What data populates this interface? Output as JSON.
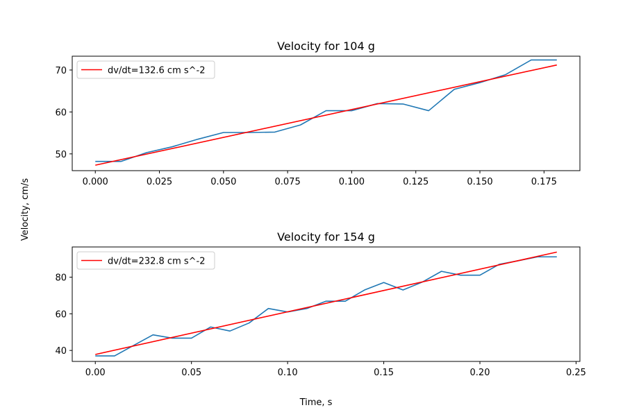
{
  "figure": {
    "xlabel": "Time, s",
    "ylabel": "Velocity, cm/s"
  },
  "chart_data": [
    {
      "type": "line",
      "title": "Velocity for 104 g",
      "xlim": [
        -0.009,
        0.189
      ],
      "ylim": [
        46,
        73.3
      ],
      "xticks": [
        0.0,
        0.025,
        0.05,
        0.075,
        0.1,
        0.125,
        0.15,
        0.175
      ],
      "xtick_labels": [
        "0.000",
        "0.025",
        "0.050",
        "0.075",
        "0.100",
        "0.125",
        "0.150",
        "0.175"
      ],
      "yticks": [
        50,
        60,
        70
      ],
      "ytick_labels": [
        "50",
        "60",
        "70"
      ],
      "legend_position": "upper-left",
      "series": [
        {
          "kind": "measured",
          "color": "#1f77b4",
          "x": [
            0.0,
            0.01,
            0.02,
            0.03,
            0.04,
            0.05,
            0.06,
            0.07,
            0.08,
            0.09,
            0.1,
            0.11,
            0.12,
            0.13,
            0.14,
            0.15,
            0.16,
            0.17,
            0.18
          ],
          "y": [
            48.2,
            48.2,
            50.3,
            51.7,
            53.5,
            55.1,
            55.1,
            55.2,
            56.9,
            60.3,
            60.3,
            62.0,
            61.9,
            60.3,
            65.4,
            67.0,
            68.9,
            72.4,
            72.4
          ]
        },
        {
          "kind": "fit",
          "name": "dv/dt=132.6 cm s^-2",
          "color": "#ff0000",
          "x": [
            0.0,
            0.18
          ],
          "y": [
            47.3,
            71.2
          ]
        }
      ]
    },
    {
      "type": "line",
      "title": "Velocity for 154 g",
      "xlim": [
        -0.012,
        0.252
      ],
      "ylim": [
        34,
        96.5
      ],
      "xticks": [
        0.0,
        0.05,
        0.1,
        0.15,
        0.2,
        0.25
      ],
      "xtick_labels": [
        "0.00",
        "0.05",
        "0.10",
        "0.15",
        "0.20",
        "0.25"
      ],
      "yticks": [
        40,
        60,
        80
      ],
      "ytick_labels": [
        "40",
        "60",
        "80"
      ],
      "legend_position": "upper-left",
      "series": [
        {
          "kind": "measured",
          "color": "#1f77b4",
          "x": [
            0.0,
            0.01,
            0.02,
            0.03,
            0.04,
            0.05,
            0.06,
            0.07,
            0.08,
            0.09,
            0.1,
            0.11,
            0.12,
            0.13,
            0.14,
            0.15,
            0.16,
            0.17,
            0.18,
            0.19,
            0.2,
            0.21,
            0.22,
            0.23,
            0.24
          ],
          "y": [
            37.0,
            37.0,
            42.8,
            48.5,
            46.7,
            46.7,
            52.8,
            50.6,
            55.0,
            62.9,
            61.0,
            62.9,
            66.9,
            66.9,
            73.0,
            77.1,
            73.0,
            77.3,
            83.2,
            81.1,
            81.1,
            87.0,
            89.0,
            91.1,
            91.1
          ]
        },
        {
          "kind": "fit",
          "name": "dv/dt=232.8 cm s^-2",
          "color": "#ff0000",
          "x": [
            0.0,
            0.24
          ],
          "y": [
            37.8,
            93.7
          ]
        }
      ]
    }
  ]
}
